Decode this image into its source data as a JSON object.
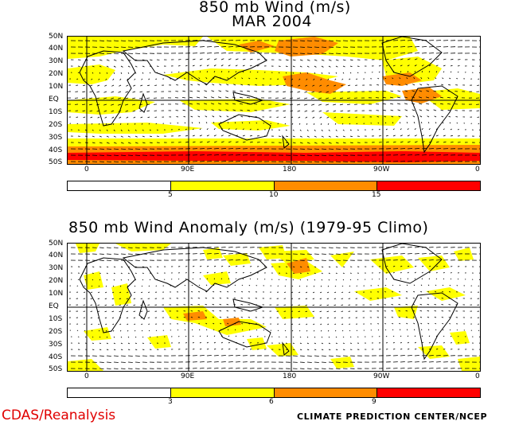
{
  "panel1": {
    "title_line1": "850 mb Wind (m/s)",
    "title_line2": "MAR 2004",
    "lat_labels": [
      "50N",
      "40N",
      "30N",
      "20N",
      "10N",
      "EQ",
      "10S",
      "20S",
      "30S",
      "40S",
      "50S"
    ],
    "lon_labels": [
      "0",
      "90E",
      "180",
      "90W",
      "0"
    ],
    "colorbar": {
      "labels": [
        "5",
        "10",
        "15"
      ],
      "colors": [
        "#ffffff",
        "#ffff00",
        "#ff8c00",
        "#ff0000"
      ]
    }
  },
  "panel2": {
    "title": "850 mb Wind Anomaly (m/s) (1979-95 Climo)",
    "lat_labels": [
      "50N",
      "40N",
      "30N",
      "20N",
      "10N",
      "EQ",
      "10S",
      "20S",
      "30S",
      "40S",
      "50S"
    ],
    "lon_labels": [
      "0",
      "90E",
      "180",
      "90W",
      "0"
    ],
    "colorbar": {
      "labels": [
        "3",
        "6",
        "9"
      ],
      "colors": [
        "#ffffff",
        "#ffff00",
        "#ff8c00",
        "#ff0000"
      ]
    }
  },
  "footer": {
    "left": "CDAS/Reanalysis",
    "right": "CLIMATE PREDICTION CENTER/NCEP"
  }
}
